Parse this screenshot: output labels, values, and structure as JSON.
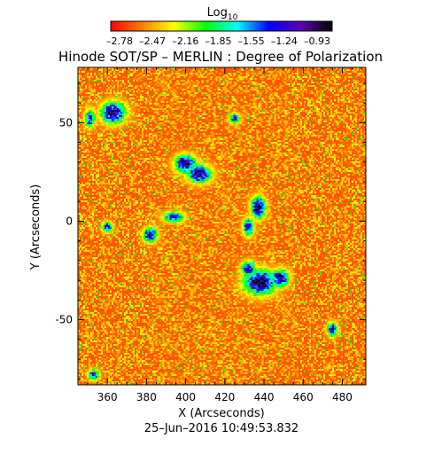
{
  "chart_data": {
    "type": "heatmap",
    "title": "Hinode SOT/SP – MERLIN : Degree of Polarization",
    "xlabel": "X (Arcseconds)",
    "ylabel": "Y (Arcseconds)",
    "timestamp": "25–Jun–2016 10:49:53.832",
    "xlim": [
      345,
      492
    ],
    "ylim": [
      -83,
      78
    ],
    "x_ticks": [
      360,
      380,
      400,
      420,
      440,
      460,
      480
    ],
    "y_ticks": [
      -50,
      0,
      50
    ],
    "colorbar": {
      "label_base": "Log",
      "label_sub": "10",
      "ticks": [
        "–2.78",
        "–2.47",
        "–2.16",
        "–1.85",
        "–1.55",
        "–1.24",
        "–0.93"
      ],
      "range": [
        -2.78,
        -0.93
      ],
      "colors": [
        "#ff0000",
        "#ff7f00",
        "#ffff00",
        "#00ff00",
        "#00ffff",
        "#0000ff",
        "#5a00b4",
        "#000000"
      ]
    },
    "background_color": "#ff6a1a",
    "regions": [
      {
        "label": "network-patch",
        "x": 363,
        "y": 55,
        "rx": 7,
        "ry": 6,
        "peak": -1.0
      },
      {
        "label": "network-patch",
        "x": 351,
        "y": 52,
        "rx": 3,
        "ry": 5,
        "peak": -1.3
      },
      {
        "label": "network-patch",
        "x": 400,
        "y": 29,
        "rx": 6,
        "ry": 5,
        "peak": -1.0
      },
      {
        "label": "network-patch",
        "x": 407,
        "y": 24,
        "rx": 7,
        "ry": 5,
        "peak": -1.1
      },
      {
        "label": "network-patch",
        "x": 382,
        "y": -7,
        "rx": 4,
        "ry": 4,
        "peak": -1.0
      },
      {
        "label": "network-patch",
        "x": 394,
        "y": 2,
        "rx": 6,
        "ry": 3,
        "peak": -1.3
      },
      {
        "label": "network-patch",
        "x": 437,
        "y": 7,
        "rx": 4,
        "ry": 6,
        "peak": -0.95
      },
      {
        "label": "network-patch",
        "x": 432,
        "y": -3,
        "rx": 3,
        "ry": 5,
        "peak": -1.2
      },
      {
        "label": "network-patch",
        "x": 438,
        "y": -31,
        "rx": 9,
        "ry": 7,
        "peak": -0.95
      },
      {
        "label": "network-patch",
        "x": 448,
        "y": -29,
        "rx": 5,
        "ry": 5,
        "peak": -1.1
      },
      {
        "label": "network-patch",
        "x": 432,
        "y": -24,
        "rx": 4,
        "ry": 4,
        "peak": -1.2
      },
      {
        "label": "network-patch",
        "x": 360,
        "y": -3,
        "rx": 3,
        "ry": 3,
        "peak": -1.3
      },
      {
        "label": "network-patch",
        "x": 475,
        "y": -55,
        "rx": 3,
        "ry": 4,
        "peak": -1.3
      },
      {
        "label": "network-patch",
        "x": 353,
        "y": -78,
        "rx": 3,
        "ry": 3,
        "peak": -1.3
      },
      {
        "label": "network-patch",
        "x": 425,
        "y": 52,
        "rx": 3,
        "ry": 3,
        "peak": -1.5
      }
    ]
  }
}
